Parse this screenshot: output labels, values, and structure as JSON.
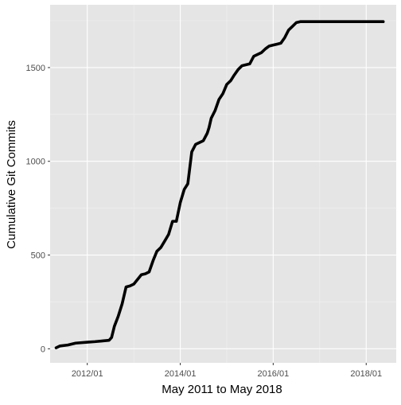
{
  "chart_data": {
    "type": "line",
    "title": "",
    "xlabel": "May 2011 to May 2018",
    "ylabel": "Cumulative Git Commits",
    "x_ticks": [
      "2012/01",
      "2014/01",
      "2016/01",
      "2018/01"
    ],
    "y_ticks": [
      "0",
      "500",
      "1000",
      "1500"
    ],
    "xlim": [
      "2011-03-15",
      "2018-08-25"
    ],
    "ylim": [
      -75,
      1835
    ],
    "grid": true,
    "legend": "none",
    "colors": {
      "panel_background": "#e5e5e5",
      "grid_major": "#ffffff",
      "line": "#000000",
      "axis_text": "#4d4d4d",
      "axis_title": "#000000"
    },
    "series": [
      {
        "x": [
          "2011-05-01",
          "2011-06-01",
          "2011-08-01",
          "2011-10-01",
          "2012-01-01",
          "2012-03-01",
          "2012-05-01",
          "2012-06-20",
          "2012-07-10",
          "2012-08-01",
          "2012-09-01",
          "2012-10-01",
          "2012-11-01",
          "2012-12-01",
          "2013-01-01",
          "2013-03-01",
          "2013-04-01",
          "2013-05-01",
          "2013-06-01",
          "2013-07-01",
          "2013-08-01",
          "2013-09-01",
          "2013-10-01",
          "2013-11-01",
          "2013-12-01",
          "2014-01-01",
          "2014-02-01",
          "2014-03-01",
          "2014-04-01",
          "2014-05-01",
          "2014-06-01",
          "2014-07-01",
          "2014-08-01",
          "2014-08-15",
          "2014-09-01",
          "2014-10-01",
          "2014-11-01",
          "2014-12-01",
          "2015-01-01",
          "2015-02-01",
          "2015-03-01",
          "2015-04-01",
          "2015-05-01",
          "2015-06-01",
          "2015-07-01",
          "2015-08-01",
          "2015-09-01",
          "2015-10-01",
          "2015-11-01",
          "2015-12-01",
          "2016-01-01",
          "2016-02-01",
          "2016-03-01",
          "2016-04-01",
          "2016-05-01",
          "2016-06-01",
          "2016-07-01",
          "2016-08-01",
          "2016-09-01",
          "2016-11-01",
          "2017-01-01",
          "2017-03-01",
          "2017-05-01",
          "2017-07-01",
          "2017-09-01",
          "2017-11-01",
          "2018-01-01",
          "2018-03-01",
          "2018-05-15"
        ],
        "y": [
          5,
          15,
          20,
          30,
          35,
          38,
          42,
          45,
          60,
          120,
          175,
          240,
          330,
          335,
          345,
          395,
          400,
          410,
          470,
          520,
          540,
          575,
          610,
          680,
          680,
          780,
          850,
          880,
          1050,
          1090,
          1100,
          1110,
          1150,
          1180,
          1230,
          1270,
          1330,
          1360,
          1410,
          1430,
          1460,
          1490,
          1510,
          1515,
          1520,
          1560,
          1570,
          1580,
          1600,
          1615,
          1620,
          1625,
          1630,
          1660,
          1700,
          1720,
          1740,
          1745,
          1745,
          1745,
          1745,
          1745,
          1745,
          1745,
          1745,
          1745,
          1745,
          1745,
          1745
        ]
      }
    ]
  }
}
